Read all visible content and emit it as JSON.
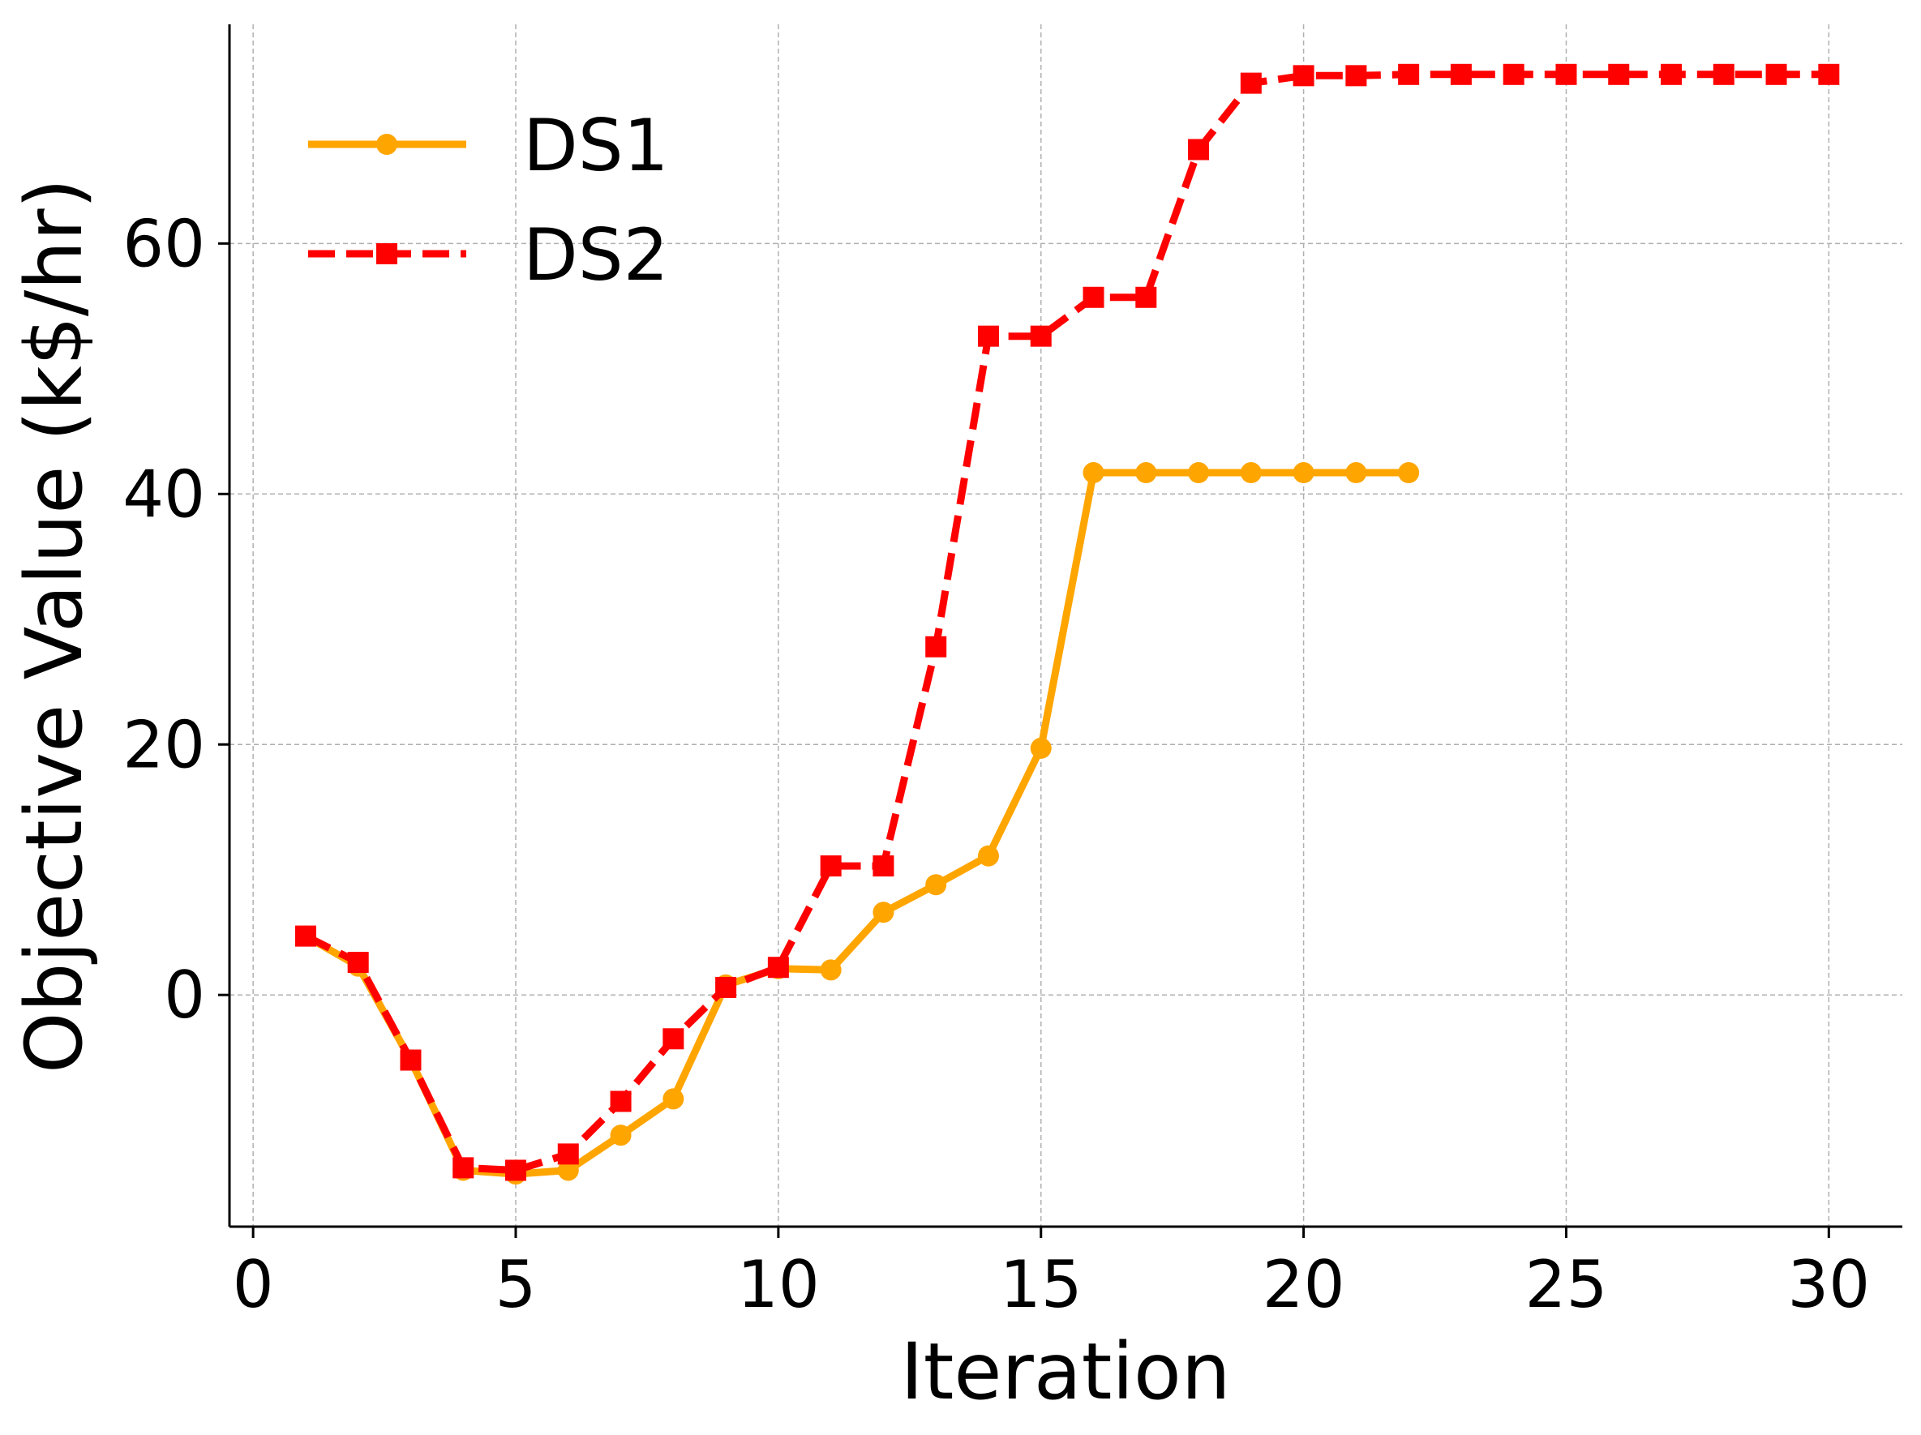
{
  "chart_data": {
    "type": "line",
    "title": "",
    "xlabel": "Iteration",
    "ylabel": "Objective Value (k$/hr)",
    "xlim": [
      -0.45,
      31.4
    ],
    "ylim": [
      -18.5,
      77.5
    ],
    "xticks": [
      0,
      5,
      10,
      15,
      20,
      25,
      30
    ],
    "yticks": [
      0,
      20,
      40,
      60
    ],
    "grid": true,
    "legend_position": "upper-left",
    "series": [
      {
        "name": "DS1",
        "color": "#FFA500",
        "line_style": "solid",
        "marker": "circle",
        "x": [
          1,
          2,
          3,
          4,
          5,
          6,
          7,
          8,
          9,
          10,
          11,
          12,
          13,
          14,
          15,
          16,
          17,
          18,
          19,
          20,
          21,
          22
        ],
        "y": [
          4.7,
          2.3,
          -5.2,
          -14.0,
          -14.3,
          -14.0,
          -11.2,
          -8.3,
          0.8,
          2.1,
          2.0,
          6.6,
          8.8,
          11.1,
          19.7,
          41.7,
          41.7,
          41.7,
          41.7,
          41.7,
          41.7,
          41.7
        ]
      },
      {
        "name": "DS2",
        "color": "#FF0000",
        "line_style": "dashed",
        "marker": "square",
        "x": [
          1,
          2,
          3,
          4,
          5,
          6,
          7,
          8,
          9,
          10,
          11,
          12,
          13,
          14,
          15,
          16,
          17,
          18,
          19,
          20,
          21,
          22,
          23,
          24,
          25,
          26,
          27,
          28,
          29,
          30
        ],
        "y": [
          4.7,
          2.6,
          -5.2,
          -13.8,
          -14.0,
          -12.7,
          -8.5,
          -3.5,
          0.6,
          2.2,
          10.3,
          10.3,
          27.8,
          52.6,
          52.6,
          55.7,
          55.7,
          67.5,
          72.8,
          73.4,
          73.4,
          73.5,
          73.5,
          73.5,
          73.5,
          73.5,
          73.5,
          73.5,
          73.5,
          73.5
        ]
      }
    ]
  }
}
